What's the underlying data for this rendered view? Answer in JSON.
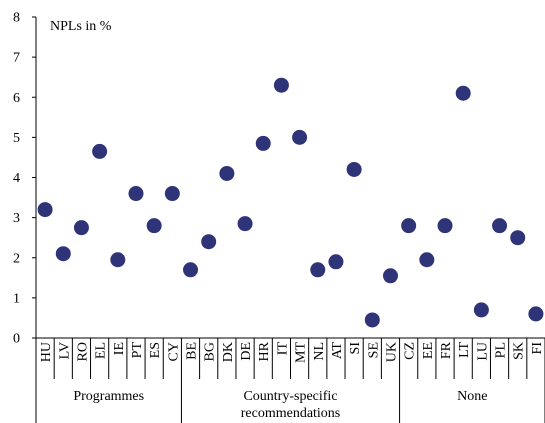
{
  "chart_data": {
    "type": "scatter",
    "title": "",
    "ylabel": "NPLs in %",
    "xlabel": "",
    "ylim": [
      0,
      8
    ],
    "yticks": [
      0,
      1,
      2,
      3,
      4,
      5,
      6,
      7,
      8
    ],
    "grid": false,
    "legend": "none",
    "marker_color": "#2e3477",
    "categories": [
      "HU",
      "LV",
      "RO",
      "EL",
      "IE",
      "PT",
      "ES",
      "CY",
      "BE",
      "BG",
      "DK",
      "DE",
      "HR",
      "IT",
      "MT",
      "NL",
      "AT",
      "SI",
      "SE",
      "UK",
      "CZ",
      "EE",
      "FR",
      "LT",
      "LU",
      "PL",
      "SK",
      "FI"
    ],
    "values": [
      3.2,
      2.1,
      2.75,
      4.65,
      1.95,
      3.6,
      2.8,
      3.6,
      1.7,
      2.4,
      4.1,
      2.85,
      4.85,
      6.3,
      5.0,
      1.7,
      1.9,
      4.2,
      0.45,
      1.55,
      2.8,
      1.95,
      2.8,
      6.1,
      0.7,
      2.8,
      2.5,
      0.6
    ],
    "groups": [
      {
        "label": "Programmes",
        "count": 8
      },
      {
        "label": "Country-specific recommendations",
        "count": 12
      },
      {
        "label": "None",
        "count": 8
      }
    ]
  }
}
